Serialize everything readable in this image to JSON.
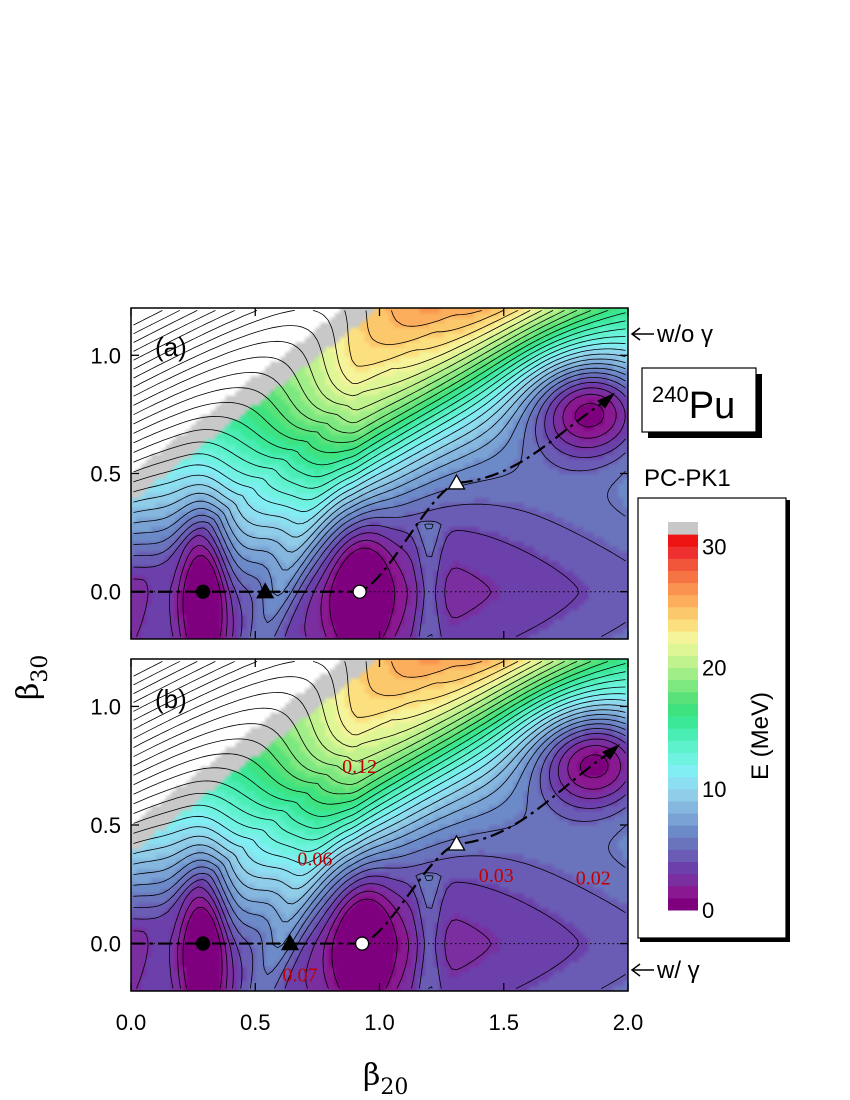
{
  "chart_data": {
    "type": "heatmap",
    "nucleus": {
      "mass_number": "240",
      "symbol": "Pu"
    },
    "model": "PC-PK1",
    "xlabel": "β",
    "xlabel_sub": "20",
    "ylabel": "β",
    "ylabel_sub": "30",
    "xlim": [
      0.0,
      2.0
    ],
    "ylim": [
      -0.2,
      1.2
    ],
    "x_ticks": [
      "0.0",
      "0.5",
      "1.0",
      "1.5",
      "2.0"
    ],
    "y_ticks": [
      "0.0",
      "0.5",
      "1.0"
    ],
    "colorbar": {
      "label": "E (MeV)",
      "range": [
        0,
        32
      ],
      "ticks": [
        "0",
        "10",
        "20",
        "30"
      ],
      "colors": [
        "#7f007f",
        "#8a1890",
        "#7a2ea0",
        "#6b40aa",
        "#6a5cb4",
        "#6a74bd",
        "#6d8ac8",
        "#7aa2d4",
        "#86b8df",
        "#90cde8",
        "#8cdff0",
        "#80eef2",
        "#6ff2e0",
        "#5ef2cc",
        "#4aeeb4",
        "#3ae898",
        "#3ee27e",
        "#5ae27a",
        "#7ee880",
        "#a0ee88",
        "#c0f28e",
        "#dff696",
        "#f6f49a",
        "#fce080",
        "#fcc86c",
        "#fcae5c",
        "#fa9250",
        "#f67444",
        "#f2563a",
        "#ee3030",
        "#ee1414",
        "#c8c8c8"
      ]
    },
    "panels": [
      {
        "label": "(a)",
        "side_label": "w/o γ",
        "annotations": [],
        "minima": [
          {
            "x": 0.29,
            "y": 0.0
          },
          {
            "x": 1.85,
            "y": 0.78
          }
        ],
        "markers": [
          {
            "shape": "circle",
            "fill": "black",
            "x": 0.29,
            "y": 0.0
          },
          {
            "shape": "triangle",
            "fill": "black",
            "x": 0.54,
            "y": 0.0
          },
          {
            "shape": "circle",
            "fill": "white",
            "x": 0.92,
            "y": 0.0
          },
          {
            "shape": "triangle",
            "fill": "white",
            "x": 1.31,
            "y": 0.46
          }
        ]
      },
      {
        "label": "(b)",
        "side_label": "w/ γ",
        "annotations": [
          {
            "text": "0.12",
            "x": 0.92,
            "y": 0.72
          },
          {
            "text": "0.06",
            "x": 0.74,
            "y": 0.33
          },
          {
            "text": "0.03",
            "x": 1.47,
            "y": 0.26
          },
          {
            "text": "0.02",
            "x": 1.86,
            "y": 0.25
          },
          {
            "text": "0.07",
            "x": 0.68,
            "y": -0.16
          }
        ],
        "minima": [
          {
            "x": 0.29,
            "y": 0.0
          },
          {
            "x": 1.87,
            "y": 0.78
          }
        ],
        "markers": [
          {
            "shape": "circle",
            "fill": "black",
            "x": 0.29,
            "y": 0.0
          },
          {
            "shape": "triangle",
            "fill": "black",
            "x": 0.64,
            "y": 0.0
          },
          {
            "shape": "circle",
            "fill": "white",
            "x": 0.93,
            "y": 0.0
          },
          {
            "shape": "triangle",
            "fill": "white",
            "x": 1.31,
            "y": 0.42
          }
        ]
      }
    ]
  }
}
